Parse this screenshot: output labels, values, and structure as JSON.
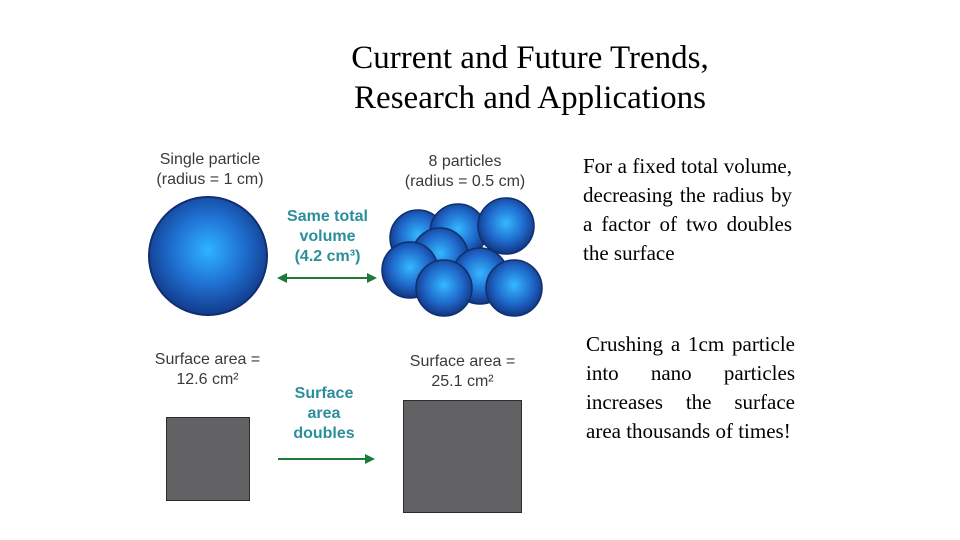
{
  "title": {
    "line1": "Current and Future Trends,",
    "line2": "Research and Applications"
  },
  "diagram": {
    "single_label": {
      "line1": "Single particle",
      "line2": "(radius = 1 cm)"
    },
    "eight_label": {
      "line1": "8 particles",
      "line2": "(radius = 0.5 cm)"
    },
    "same_volume": {
      "line1": "Same total",
      "line2": "volume",
      "line3": "(4.2 cm³)"
    },
    "area_small": {
      "line1": "Surface area =",
      "line2": "12.6 cm²"
    },
    "area_large": {
      "line1": "Surface area =",
      "line2": "25.1 cm²"
    },
    "area_doubles": {
      "line1": "Surface",
      "line2": "area",
      "line3": "doubles"
    },
    "colors": {
      "accent": "#2a8f9a",
      "sphere": "#1f5fc4",
      "square": "#626264"
    }
  },
  "text": {
    "para1": "For a fixed total volume, decreasing the radius by a factor of two doubles the surface",
    "para2": "Crushing a 1cm particle into nano particles increases the surface area thousands of times!"
  }
}
